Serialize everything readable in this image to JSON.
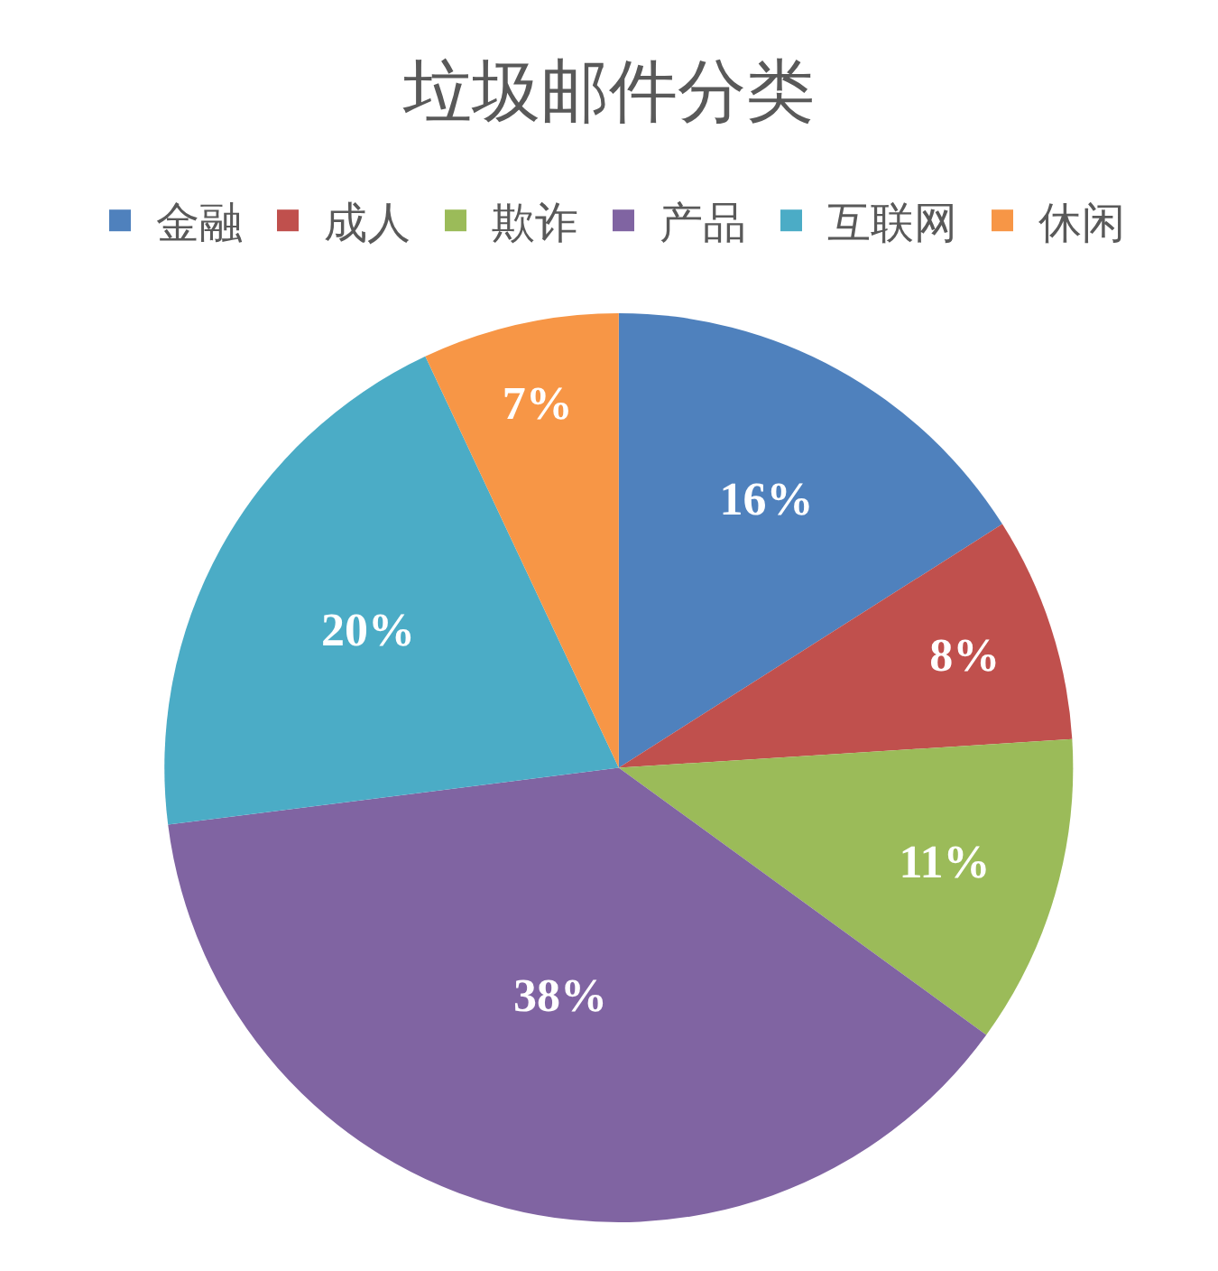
{
  "chart_data": {
    "type": "pie",
    "title": "垃圾邮件分类",
    "categories": [
      "金融",
      "成人",
      "欺诈",
      "产品",
      "互联网",
      "休闲"
    ],
    "values": [
      16,
      8,
      11,
      38,
      20,
      7
    ],
    "colors": [
      "#4f81bd",
      "#c0504d",
      "#9bbb59",
      "#8064a2",
      "#4bacc6",
      "#f79646"
    ],
    "value_labels": [
      "16%",
      "8%",
      "11%",
      "38%",
      "20%",
      "7%"
    ],
    "legend": "top"
  }
}
